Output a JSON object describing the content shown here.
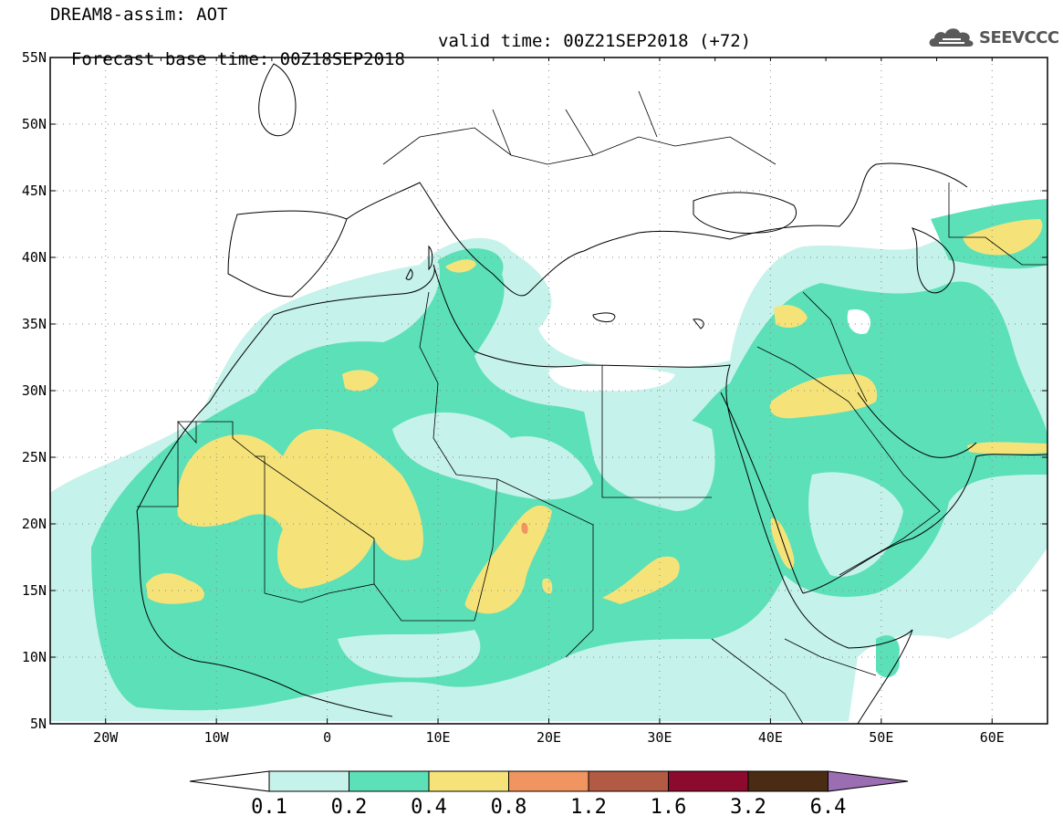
{
  "header": {
    "title": "DREAM8-assim: AOT",
    "base_time": "Forecast base time: 00Z18SEP2018",
    "valid_time": "valid time: 00Z21SEP2018 (+72)"
  },
  "logo": {
    "text": "SEEVCCC",
    "icon": "cloud-icon",
    "color": "#555555"
  },
  "map": {
    "projection": "cylindrical",
    "lon_range": [
      -25,
      65
    ],
    "lat_range": [
      5,
      55
    ],
    "lat_labels": [
      "55N",
      "50N",
      "45N",
      "40N",
      "35N",
      "30N",
      "25N",
      "20N",
      "15N",
      "10N",
      "5N"
    ],
    "lon_labels": [
      "20W",
      "10W",
      "0",
      "10E",
      "20E",
      "30E",
      "40E",
      "50E",
      "60E"
    ],
    "grid": "dotted"
  },
  "colorbar": {
    "labels": [
      "0.1",
      "0.2",
      "0.4",
      "0.8",
      "1.2",
      "1.6",
      "3.2",
      "6.4"
    ],
    "colors": [
      "#ffffff",
      "#c5f2ea",
      "#5ce0b8",
      "#f5e37a",
      "#f09460",
      "#b35a44",
      "#8b0a2e",
      "#4a2c14",
      "#9b6db3"
    ]
  }
}
